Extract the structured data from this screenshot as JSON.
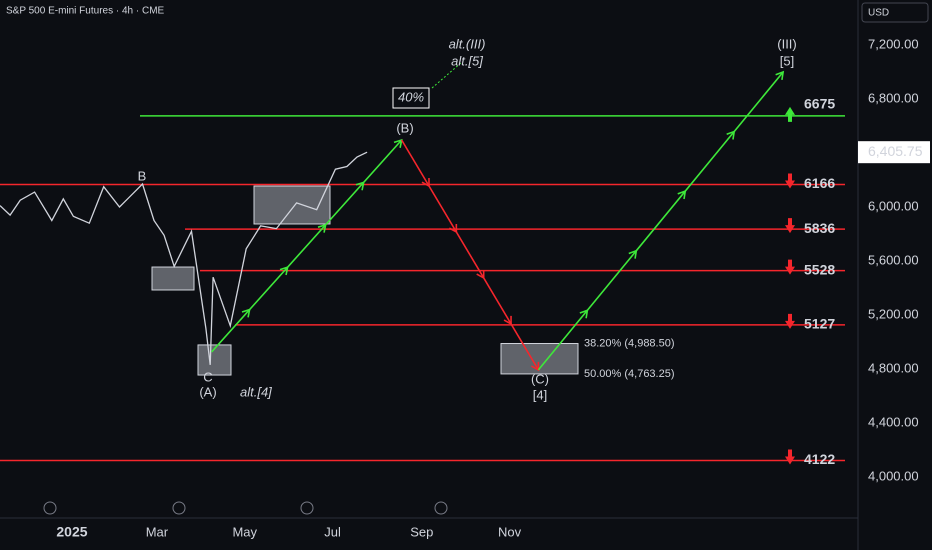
{
  "chart_data": {
    "type": "line",
    "title": "S&P 500 E-mini Futures · 4h · CME",
    "y_axis_label": "USD",
    "color": "#d1d4dc",
    "x": [
      "2024-11-12",
      "2024-11-19",
      "2024-11-26",
      "2024-12-06",
      "2024-12-18",
      "2024-12-26",
      "2025-01-02",
      "2025-01-13",
      "2025-01-23",
      "2025-02-03",
      "2025-02-19",
      "2025-02-27",
      "2025-03-06",
      "2025-03-13",
      "2025-03-25",
      "2025-04-04",
      "2025-04-07",
      "2025-04-09",
      "2025-04-21",
      "2025-05-02",
      "2025-05-12",
      "2025-05-23",
      "2025-06-06",
      "2025-06-20",
      "2025-07-03",
      "2025-07-11",
      "2025-07-18",
      "2025-07-25"
    ],
    "values": [
      6010,
      5940,
      6050,
      6110,
      5900,
      6060,
      5930,
      5880,
      6150,
      6000,
      6170,
      5900,
      5790,
      5560,
      5820,
      5100,
      4830,
      5480,
      5120,
      5690,
      5860,
      5840,
      6030,
      5980,
      6280,
      6300,
      6370,
      6405.75
    ],
    "last_price": {
      "value": 6405.75,
      "label": "6,405.75"
    },
    "xlim": [
      "2024-11-12",
      "2026-07-01"
    ],
    "xticks": [
      {
        "value": "2025-01-01",
        "label": "2025"
      },
      {
        "value": "2025-03-01",
        "label": "Mar"
      },
      {
        "value": "2025-05-01",
        "label": "May"
      },
      {
        "value": "2025-07-01",
        "label": "Jul"
      },
      {
        "value": "2025-09-01",
        "label": "Sep"
      },
      {
        "value": "2025-11-01",
        "label": "Nov"
      }
    ],
    "ylim": [
      3696,
      7533
    ],
    "yticks": [
      {
        "value": 4000,
        "label": "4,000.00"
      },
      {
        "value": 4400,
        "label": "4,400.00"
      },
      {
        "value": 4800,
        "label": "4,800.00"
      },
      {
        "value": 5200,
        "label": "5,200.00"
      },
      {
        "value": 5600,
        "label": "5,600.00"
      },
      {
        "value": 6000,
        "label": "6,000.00"
      },
      {
        "value": 6800,
        "label": "6,800.00"
      },
      {
        "value": 7200,
        "label": "7,200.00"
      }
    ],
    "levels": [
      {
        "value": 6675,
        "color": "#3ee83a",
        "direction": "up"
      },
      {
        "value": 6166,
        "color": "#f5262c",
        "direction": "down"
      },
      {
        "value": 5836,
        "color": "#f5262c",
        "direction": "down"
      },
      {
        "value": 5528,
        "color": "#f5262c",
        "direction": "down"
      },
      {
        "value": 5127,
        "color": "#f5262c",
        "direction": "down"
      },
      {
        "value": 4122,
        "color": "#f5262c",
        "direction": "down"
      }
    ],
    "zones": [
      {
        "top": 5555,
        "bottom": 5385
      },
      {
        "top": 6155,
        "bottom": 5874
      },
      {
        "top": 4978,
        "bottom": 4755
      },
      {
        "top": 4988.5,
        "bottom": 4763.25,
        "top_label": "38.20% (4,988.50)",
        "bottom_label": "50.00% (4,763.25)"
      }
    ],
    "projection": {
      "x": [
        "2025-04-08",
        "2025-08-18",
        "2025-11-21",
        "2026-05-10"
      ],
      "values": [
        4926,
        6496,
        4793,
        7000
      ],
      "colors": [
        "#3ee83a",
        "#f5262c",
        "#3ee83a"
      ]
    },
    "annotations": [
      {
        "text": "B",
        "color": "#26a69a"
      },
      {
        "text": "C",
        "color": "#26a69a"
      },
      {
        "text": "(A)",
        "color": "#e0245e"
      },
      {
        "text": "alt.[4]",
        "color": "#b2b5be"
      },
      {
        "text": "(B)",
        "color": "#e0245e"
      },
      {
        "text": "(C)",
        "color": "#e0245e"
      },
      {
        "text": "[4]",
        "color": "#d1d4dc"
      },
      {
        "text": "alt.(III)",
        "color": "#5a7fa8"
      },
      {
        "text": "alt.[5]",
        "color": "#c8ccd4"
      },
      {
        "text": "(III)",
        "color": "#5b8cc9"
      },
      {
        "text": "[5]",
        "color": "#d1d4dc"
      },
      {
        "text": "40%",
        "color": "#ffffff"
      }
    ]
  }
}
